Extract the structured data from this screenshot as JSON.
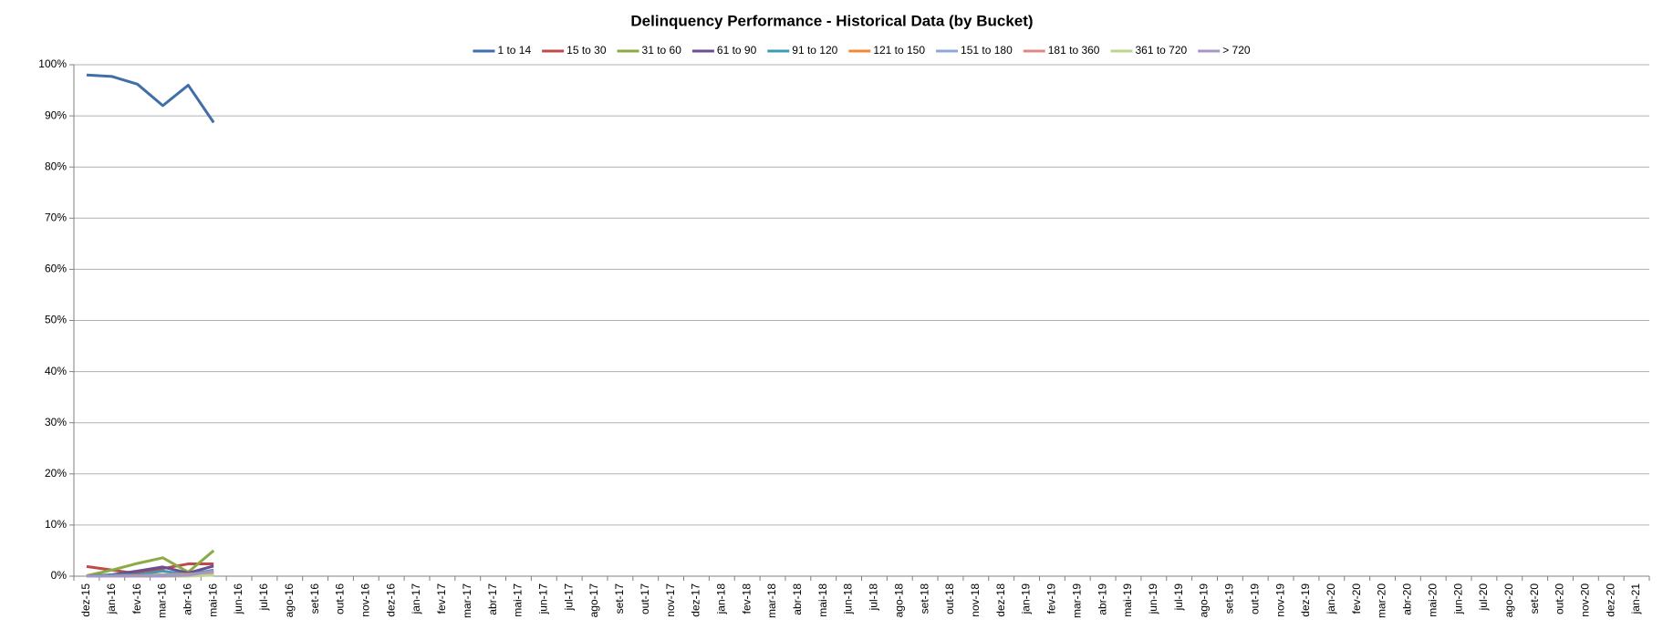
{
  "chart_data": {
    "type": "line",
    "title": "Delinquency Performance - Historical Data (by Bucket)",
    "categories": [
      "dez-15",
      "jan-16",
      "fev-16",
      "mar-16",
      "abr-16",
      "mai-16",
      "jun-16",
      "jul-16",
      "ago-16",
      "set-16",
      "out-16",
      "nov-16",
      "dez-16",
      "jan-17",
      "fev-17",
      "mar-17",
      "abr-17",
      "mai-17",
      "jun-17",
      "jul-17",
      "ago-17",
      "set-17",
      "out-17",
      "nov-17",
      "dez-17",
      "jan-18",
      "fev-18",
      "mar-18",
      "abr-18",
      "mai-18",
      "jun-18",
      "jul-18",
      "ago-18",
      "set-18",
      "out-18",
      "nov-18",
      "dez-18",
      "jan-19",
      "fev-19",
      "mar-19",
      "abr-19",
      "mai-19",
      "jun-19",
      "jul-19",
      "ago-19",
      "set-19",
      "out-19",
      "nov-19",
      "dez-19",
      "jan-20",
      "fev-20",
      "mar-20",
      "abr-20",
      "mai-20",
      "jun-20",
      "jul-20",
      "ago-20",
      "set-20",
      "out-20",
      "nov-20",
      "dez-20",
      "jan-21"
    ],
    "series": [
      {
        "name": "1 to 14",
        "color": "#3f6ea8",
        "values": [
          98,
          97.7,
          96.2,
          92,
          96,
          88.7,
          null,
          null,
          null,
          null,
          null,
          null,
          null,
          null,
          null,
          null,
          null,
          null,
          null,
          null,
          null,
          null,
          null,
          null,
          null,
          null,
          null,
          null,
          null,
          null,
          null,
          null,
          null,
          null,
          null,
          null,
          null,
          null,
          null,
          null,
          null,
          null,
          null,
          null,
          null,
          null,
          null,
          null,
          null,
          null,
          null,
          null,
          null,
          null,
          null,
          null,
          null,
          null,
          null,
          null,
          null,
          null
        ]
      },
      {
        "name": "15 to 30",
        "color": "#be4b48",
        "values": [
          1.9,
          1.2,
          0.5,
          1.5,
          2.4,
          2.4,
          null,
          null,
          null,
          null,
          null,
          null,
          null,
          null,
          null,
          null,
          null,
          null,
          null,
          null,
          null,
          null,
          null,
          null,
          null,
          null,
          null,
          null,
          null,
          null,
          null,
          null,
          null,
          null,
          null,
          null,
          null,
          null,
          null,
          null,
          null,
          null,
          null,
          null,
          null,
          null,
          null,
          null,
          null,
          null,
          null,
          null,
          null,
          null,
          null,
          null,
          null,
          null,
          null,
          null,
          null,
          null
        ]
      },
      {
        "name": "31 to 60",
        "color": "#8aab46",
        "values": [
          0.1,
          1.2,
          2.5,
          3.6,
          0.8,
          5.0,
          null,
          null,
          null,
          null,
          null,
          null,
          null,
          null,
          null,
          null,
          null,
          null,
          null,
          null,
          null,
          null,
          null,
          null,
          null,
          null,
          null,
          null,
          null,
          null,
          null,
          null,
          null,
          null,
          null,
          null,
          null,
          null,
          null,
          null,
          null,
          null,
          null,
          null,
          null,
          null,
          null,
          null,
          null,
          null,
          null,
          null,
          null,
          null,
          null,
          null,
          null,
          null,
          null,
          null,
          null,
          null
        ]
      },
      {
        "name": "61 to 90",
        "color": "#6b4d92",
        "values": [
          0,
          0.3,
          1,
          1.8,
          0.6,
          2.0,
          null,
          null,
          null,
          null,
          null,
          null,
          null,
          null,
          null,
          null,
          null,
          null,
          null,
          null,
          null,
          null,
          null,
          null,
          null,
          null,
          null,
          null,
          null,
          null,
          null,
          null,
          null,
          null,
          null,
          null,
          null,
          null,
          null,
          null,
          null,
          null,
          null,
          null,
          null,
          null,
          null,
          null,
          null,
          null,
          null,
          null,
          null,
          null,
          null,
          null,
          null,
          null,
          null,
          null,
          null,
          null
        ]
      },
      {
        "name": "91 to 120",
        "color": "#3d9bb5",
        "values": [
          0,
          0.2,
          0.3,
          1.0,
          0.3,
          1.2,
          null,
          null,
          null,
          null,
          null,
          null,
          null,
          null,
          null,
          null,
          null,
          null,
          null,
          null,
          null,
          null,
          null,
          null,
          null,
          null,
          null,
          null,
          null,
          null,
          null,
          null,
          null,
          null,
          null,
          null,
          null,
          null,
          null,
          null,
          null,
          null,
          null,
          null,
          null,
          null,
          null,
          null,
          null,
          null,
          null,
          null,
          null,
          null,
          null,
          null,
          null,
          null,
          null,
          null,
          null,
          null
        ]
      },
      {
        "name": "121 to 150",
        "color": "#f08a3a",
        "values": [
          0,
          0,
          0.1,
          0.3,
          0.4,
          0.6,
          null,
          null,
          null,
          null,
          null,
          null,
          null,
          null,
          null,
          null,
          null,
          null,
          null,
          null,
          null,
          null,
          null,
          null,
          null,
          null,
          null,
          null,
          null,
          null,
          null,
          null,
          null,
          null,
          null,
          null,
          null,
          null,
          null,
          null,
          null,
          null,
          null,
          null,
          null,
          null,
          null,
          null,
          null,
          null,
          null,
          null,
          null,
          null,
          null,
          null,
          null,
          null,
          null,
          null,
          null,
          null
        ]
      },
      {
        "name": "151 to 180",
        "color": "#8eaad4",
        "values": [
          0,
          0,
          0,
          0.2,
          0.3,
          0.8,
          null,
          null,
          null,
          null,
          null,
          null,
          null,
          null,
          null,
          null,
          null,
          null,
          null,
          null,
          null,
          null,
          null,
          null,
          null,
          null,
          null,
          null,
          null,
          null,
          null,
          null,
          null,
          null,
          null,
          null,
          null,
          null,
          null,
          null,
          null,
          null,
          null,
          null,
          null,
          null,
          null,
          null,
          null,
          null,
          null,
          null,
          null,
          null,
          null,
          null,
          null,
          null,
          null,
          null,
          null,
          null
        ]
      },
      {
        "name": "181 to 360",
        "color": "#e08886",
        "values": [
          0,
          0,
          0,
          0,
          0.1,
          0.4,
          null,
          null,
          null,
          null,
          null,
          null,
          null,
          null,
          null,
          null,
          null,
          null,
          null,
          null,
          null,
          null,
          null,
          null,
          null,
          null,
          null,
          null,
          null,
          null,
          null,
          null,
          null,
          null,
          null,
          null,
          null,
          null,
          null,
          null,
          null,
          null,
          null,
          null,
          null,
          null,
          null,
          null,
          null,
          null,
          null,
          null,
          null,
          null,
          null,
          null,
          null,
          null,
          null,
          null,
          null,
          null
        ]
      },
      {
        "name": "361 to 720",
        "color": "#bcd68f",
        "values": [
          0,
          0,
          0,
          0,
          0,
          0.2,
          null,
          null,
          null,
          null,
          null,
          null,
          null,
          null,
          null,
          null,
          null,
          null,
          null,
          null,
          null,
          null,
          null,
          null,
          null,
          null,
          null,
          null,
          null,
          null,
          null,
          null,
          null,
          null,
          null,
          null,
          null,
          null,
          null,
          null,
          null,
          null,
          null,
          null,
          null,
          null,
          null,
          null,
          null,
          null,
          null,
          null,
          null,
          null,
          null,
          null,
          null,
          null,
          null,
          null,
          null,
          null
        ]
      },
      {
        "name": "> 720",
        "color": "#a596c4",
        "values": [
          0,
          0,
          0,
          0,
          0.2,
          1.0,
          null,
          null,
          null,
          null,
          null,
          null,
          null,
          null,
          null,
          null,
          null,
          null,
          null,
          null,
          null,
          null,
          null,
          null,
          null,
          null,
          null,
          null,
          null,
          null,
          null,
          null,
          null,
          null,
          null,
          null,
          null,
          null,
          null,
          null,
          null,
          null,
          null,
          null,
          null,
          null,
          null,
          null,
          null,
          null,
          null,
          null,
          null,
          null,
          null,
          null,
          null,
          null,
          null,
          null,
          null,
          null
        ]
      }
    ],
    "ylim": [
      0,
      100
    ],
    "yticks": [
      {
        "value": 0,
        "label": "0%"
      },
      {
        "value": 10,
        "label": "10%"
      },
      {
        "value": 20,
        "label": "20%"
      },
      {
        "value": 30,
        "label": "30%"
      },
      {
        "value": 40,
        "label": "40%"
      },
      {
        "value": 50,
        "label": "50%"
      },
      {
        "value": 60,
        "label": "60%"
      },
      {
        "value": 70,
        "label": "70%"
      },
      {
        "value": 80,
        "label": "80%"
      },
      {
        "value": 90,
        "label": "90%"
      },
      {
        "value": 100,
        "label": "100%"
      }
    ],
    "grid": true,
    "legend": "top"
  }
}
